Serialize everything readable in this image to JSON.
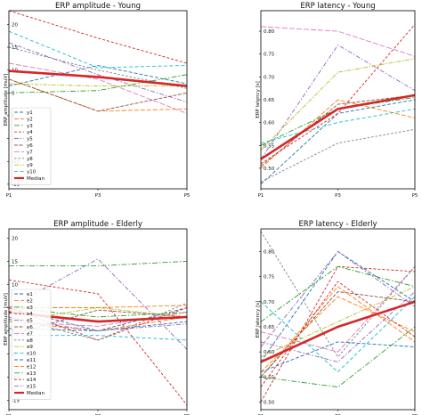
{
  "chart_data": [
    {
      "type": "line",
      "title": "ERP amplitude - Young",
      "ylabel": "ERP amplitude [muV]",
      "xlabel": "",
      "x": [
        "P1",
        "P3",
        "P5"
      ],
      "ylim": [
        -16,
        23
      ],
      "yticks": [
        -15,
        -10,
        -5,
        0,
        5,
        10,
        15,
        20
      ],
      "legend": "left",
      "series": [
        {
          "name": "y1",
          "color": "#1f77b4",
          "values": [
            6.5,
            11,
            7
          ]
        },
        {
          "name": "y2",
          "color": "#ff7f0e",
          "values": [
            8,
            1,
            1.5
          ]
        },
        {
          "name": "y3",
          "color": "#2ca02c",
          "values": [
            5,
            5.5,
            9
          ]
        },
        {
          "name": "y4",
          "color": "#d62728",
          "values": [
            23,
            17,
            11.5
          ]
        },
        {
          "name": "y5",
          "color": "#9467bd",
          "values": [
            16,
            9,
            3
          ]
        },
        {
          "name": "y6",
          "color": "#8c564b",
          "values": [
            8,
            1,
            5
          ]
        },
        {
          "name": "y7",
          "color": "#e377c2",
          "values": [
            11.5,
            8,
            0.5
          ]
        },
        {
          "name": "y8",
          "color": "#7f7f7f",
          "values": [
            15,
            10,
            6
          ]
        },
        {
          "name": "y9",
          "color": "#bcbd22",
          "values": [
            7,
            6.5,
            6.5
          ]
        },
        {
          "name": "y10",
          "color": "#17becf",
          "values": [
            18.5,
            10.5,
            11
          ]
        },
        {
          "name": "Median",
          "color": "#d62728",
          "values": [
            9.8,
            8.5,
            6.5
          ],
          "median": true
        }
      ]
    },
    {
      "type": "line",
      "title": "ERP latency - Young",
      "ylabel": "ERP latency [s]",
      "xlabel": "",
      "x": [
        "P1",
        "P3",
        "P5"
      ],
      "ylim": [
        0.455,
        0.845
      ],
      "yticks": [
        0.5,
        0.55,
        0.6,
        0.65,
        0.7,
        0.75,
        0.8
      ],
      "series": [
        {
          "name": "y1",
          "color": "#1f77b4",
          "values": [
            0.465,
            0.62,
            0.65
          ]
        },
        {
          "name": "y2",
          "color": "#ff7f0e",
          "values": [
            0.5,
            0.65,
            0.61
          ]
        },
        {
          "name": "y3",
          "color": "#2ca02c",
          "values": [
            0.55,
            0.63,
            0.655
          ]
        },
        {
          "name": "y4",
          "color": "#d62728",
          "values": [
            0.51,
            0.62,
            0.815
          ]
        },
        {
          "name": "y5",
          "color": "#9467bd",
          "values": [
            0.52,
            0.77,
            0.67
          ]
        },
        {
          "name": "y6",
          "color": "#8c564b",
          "values": [
            0.505,
            0.64,
            0.66
          ]
        },
        {
          "name": "y7",
          "color": "#e377c2",
          "values": [
            0.81,
            0.8,
            0.745
          ]
        },
        {
          "name": "y8",
          "color": "#7f7f7f",
          "values": [
            0.47,
            0.555,
            0.585
          ]
        },
        {
          "name": "y9",
          "color": "#bcbd22",
          "values": [
            0.54,
            0.71,
            0.74
          ]
        },
        {
          "name": "y10",
          "color": "#17becf",
          "values": [
            0.555,
            0.6,
            0.63
          ]
        },
        {
          "name": "Median",
          "color": "#d62728",
          "values": [
            0.52,
            0.63,
            0.66
          ],
          "median": true
        }
      ]
    },
    {
      "type": "line",
      "title": "ERP amplitude - Elderly",
      "ylabel": "ERP amplitude [muV]",
      "xlabel": "",
      "x": [
        "P1",
        "P3",
        "P5"
      ],
      "ylim": [
        -17,
        22
      ],
      "yticks": [
        -15,
        -10,
        -5,
        0,
        5,
        10,
        15,
        20
      ],
      "legend": "left",
      "series": [
        {
          "name": "e1",
          "color": "#1f77b4",
          "values": [
            5,
            0,
            5
          ]
        },
        {
          "name": "e2",
          "color": "#ff7f0e",
          "values": [
            2,
            0,
            3
          ]
        },
        {
          "name": "e3",
          "color": "#2ca02c",
          "values": [
            5,
            3,
            4
          ]
        },
        {
          "name": "e4",
          "color": "#d62728",
          "values": [
            5,
            -2,
            5
          ]
        },
        {
          "name": "e5",
          "color": "#9467bd",
          "values": [
            5,
            15.5,
            -4
          ]
        },
        {
          "name": "e6",
          "color": "#8c564b",
          "values": [
            -1,
            4.5,
            3
          ]
        },
        {
          "name": "e7",
          "color": "#e377c2",
          "values": [
            2,
            1,
            4
          ]
        },
        {
          "name": "e8",
          "color": "#7f7f7f",
          "values": [
            3,
            -2,
            6
          ]
        },
        {
          "name": "e9",
          "color": "#bcbd22",
          "values": [
            2,
            5,
            3
          ]
        },
        {
          "name": "e10",
          "color": "#17becf",
          "values": [
            -1,
            -1,
            -2
          ]
        },
        {
          "name": "e11",
          "color": "#1f77b4",
          "values": [
            0.5,
            0,
            2
          ]
        },
        {
          "name": "e12",
          "color": "#ff7f0e",
          "values": [
            5,
            5,
            5.5
          ]
        },
        {
          "name": "e13",
          "color": "#2ca02c",
          "values": [
            14,
            14,
            15
          ]
        },
        {
          "name": "e14",
          "color": "#d62728",
          "values": [
            11,
            8,
            -16
          ]
        },
        {
          "name": "e15",
          "color": "#9467bd",
          "values": [
            2.5,
            0,
            1.5
          ]
        },
        {
          "name": "Median",
          "color": "#d62728",
          "values": [
            4,
            2,
            3
          ],
          "median": true
        }
      ]
    },
    {
      "type": "line",
      "title": "ERP latency - Elderly",
      "ylabel": "ERP latency [s]",
      "xlabel": "",
      "x": [
        "P1",
        "P3",
        "P5"
      ],
      "ylim": [
        0.485,
        0.845
      ],
      "yticks": [
        0.5,
        0.55,
        0.6,
        0.65,
        0.7,
        0.75,
        0.8
      ],
      "series": [
        {
          "name": "e1",
          "color": "#1f77b4",
          "values": [
            0.58,
            0.8,
            0.7
          ]
        },
        {
          "name": "e2",
          "color": "#ff7f0e",
          "values": [
            0.55,
            0.73,
            0.62
          ]
        },
        {
          "name": "e3",
          "color": "#2ca02c",
          "values": [
            0.55,
            0.53,
            0.65
          ]
        },
        {
          "name": "e4",
          "color": "#d62728",
          "values": [
            0.5,
            0.77,
            0.76
          ]
        },
        {
          "name": "e5",
          "color": "#9467bd",
          "values": [
            0.61,
            0.8,
            0.69
          ]
        },
        {
          "name": "e6",
          "color": "#8c564b",
          "values": [
            0.55,
            0.72,
            0.7
          ]
        },
        {
          "name": "e7",
          "color": "#e377c2",
          "values": [
            0.64,
            0.6,
            0.77
          ]
        },
        {
          "name": "e8",
          "color": "#7f7f7f",
          "values": [
            0.84,
            0.59,
            0.77
          ]
        },
        {
          "name": "e9",
          "color": "#bcbd22",
          "values": [
            0.59,
            0.66,
            0.73
          ]
        },
        {
          "name": "e10",
          "color": "#17becf",
          "values": [
            0.7,
            0.56,
            0.71
          ]
        },
        {
          "name": "e11",
          "color": "#1f77b4",
          "values": [
            0.56,
            0.62,
            0.61
          ]
        },
        {
          "name": "e12",
          "color": "#ff7f0e",
          "values": [
            0.56,
            0.71,
            0.64
          ]
        },
        {
          "name": "e13",
          "color": "#2ca02c",
          "values": [
            0.66,
            0.77,
            0.73
          ]
        },
        {
          "name": "e14",
          "color": "#d62728",
          "values": [
            0.53,
            0.74,
            0.63
          ]
        },
        {
          "name": "e15",
          "color": "#9467bd",
          "values": [
            0.62,
            0.58,
            0.72
          ]
        },
        {
          "name": "Median",
          "color": "#d62728",
          "values": [
            0.58,
            0.65,
            0.7
          ],
          "median": true
        }
      ]
    }
  ]
}
